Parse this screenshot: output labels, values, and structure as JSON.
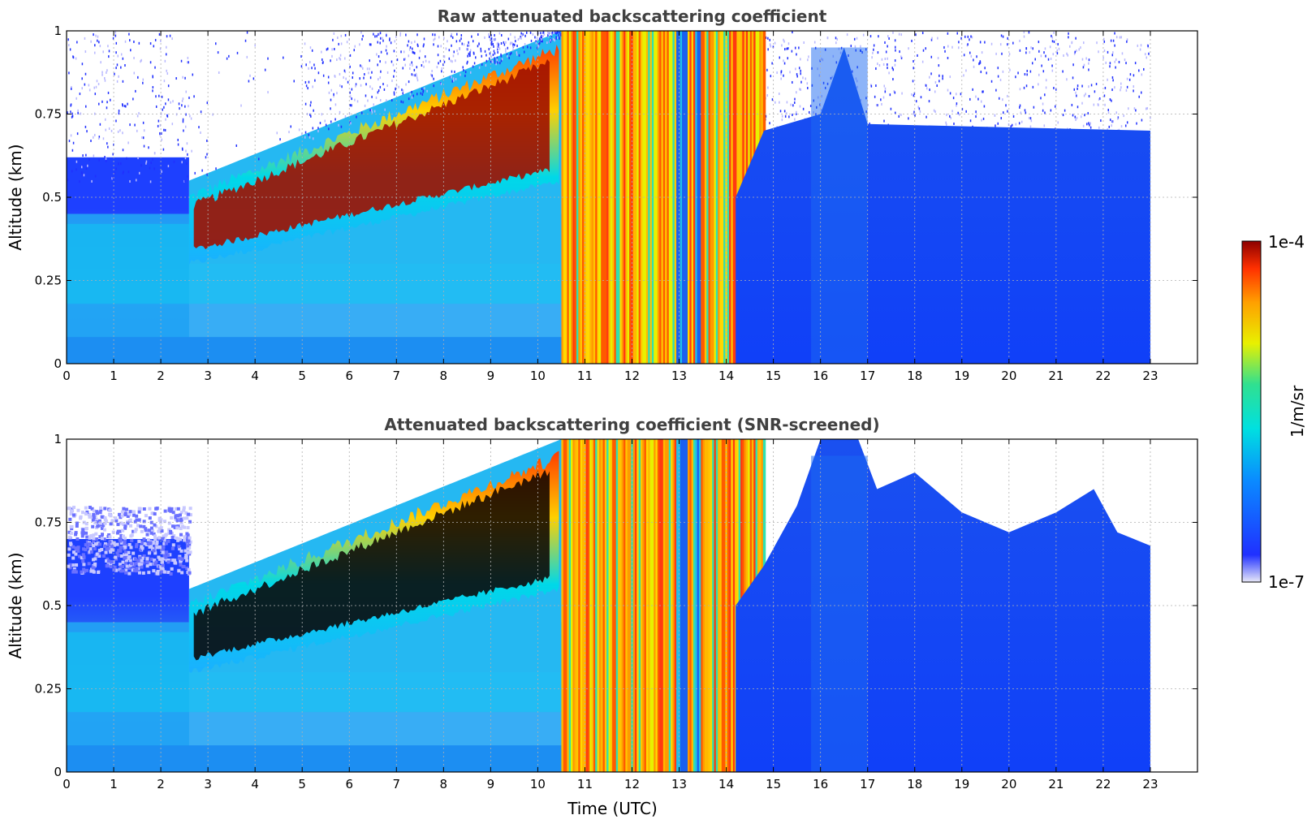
{
  "chart_data": [
    {
      "type": "heatmap",
      "title": "Raw attenuated backscattering coefficient",
      "xlabel": "",
      "ylabel": "Altitude (km)",
      "xlim": [
        0,
        24
      ],
      "ylim": [
        0,
        1
      ],
      "x_ticks": [
        "0",
        "1",
        "2",
        "3",
        "4",
        "5",
        "6",
        "7",
        "8",
        "9",
        "10",
        "11",
        "12",
        "13",
        "14",
        "15",
        "16",
        "17",
        "18",
        "19",
        "20",
        "21",
        "22",
        "23"
      ],
      "y_ticks": [
        "0",
        "0.25",
        "0.5",
        "0.75",
        "1"
      ],
      "grid": true,
      "screened": false,
      "data_extent_x": [
        0,
        23
      ],
      "features": [
        {
          "name": "aerosol layer (high backscatter)",
          "x_range": [
            2.6,
            10.5
          ],
          "base_km_start": 0.3,
          "top_km_start": 0.5,
          "top_km_end": 0.95
        },
        {
          "name": "cloud / precipitation columns",
          "x_range": [
            10.5,
            14.8
          ]
        },
        {
          "name": "clear / low backscatter",
          "x_range": [
            14.8,
            23
          ]
        }
      ]
    },
    {
      "type": "heatmap",
      "title": "Attenuated backscattering coefficient (SNR-screened)",
      "xlabel": "Time (UTC)",
      "ylabel": "Altitude (km)",
      "xlim": [
        0,
        24
      ],
      "ylim": [
        0,
        1
      ],
      "x_ticks": [
        "0",
        "1",
        "2",
        "3",
        "4",
        "5",
        "6",
        "7",
        "8",
        "9",
        "10",
        "11",
        "12",
        "13",
        "14",
        "15",
        "16",
        "17",
        "18",
        "19",
        "20",
        "21",
        "22",
        "23"
      ],
      "y_ticks": [
        "0",
        "0.25",
        "0.5",
        "0.75",
        "1"
      ],
      "grid": true,
      "screened": true,
      "data_extent_x": [
        0,
        23
      ]
    }
  ],
  "colorbar": {
    "label": "1/m/sr",
    "max_label": "1e-4",
    "min_label": "1e-7",
    "colormap": [
      "#e8e8f8",
      "#1e28ff",
      "#0a8cff",
      "#00e0e0",
      "#30e090",
      "#e8f000",
      "#ffa000",
      "#ff3000",
      "#8c0000"
    ]
  }
}
